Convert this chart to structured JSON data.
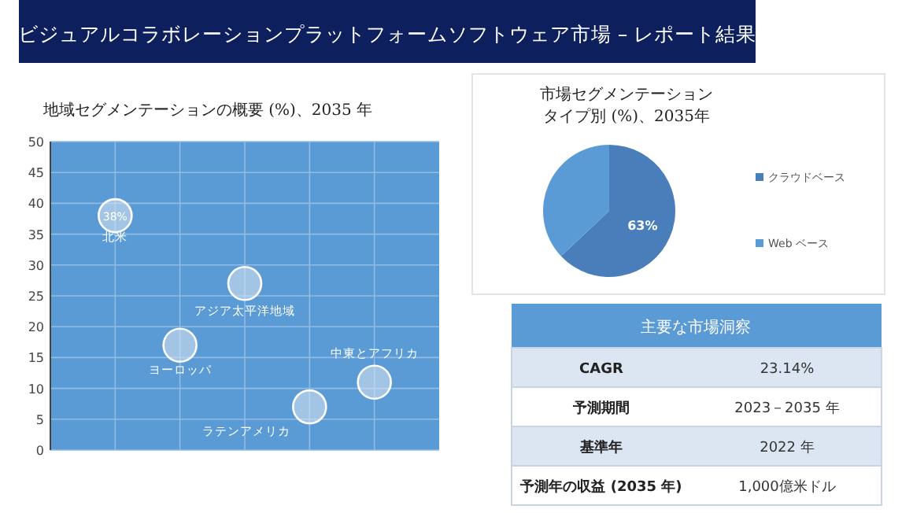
{
  "chart_data": [
    {
      "type": "other",
      "title": "ビジュアルコラボレーションプラットフォームソフトウェア市場 – レポート結果"
    },
    {
      "type": "bubble",
      "title": "地域セグメンテーションの概要 (%)、2035 年",
      "categories": [
        null,
        null,
        null,
        null,
        null
      ],
      "series": [
        {
          "color": "#dce6f2",
          "values": [
            38,
            17,
            27,
            7,
            11
          ],
          "sizes": [
            1,
            1,
            1,
            1,
            1
          ],
          "value_labels": [
            "38%",
            null,
            null,
            null,
            null
          ]
        }
      ],
      "ylim": [
        0,
        50
      ],
      "yticks": [
        0,
        5,
        10,
        15,
        20,
        25,
        30,
        35,
        40,
        45,
        50
      ],
      "grid": true,
      "annotations": [
        "北米",
        "ヨーロッパ",
        "アジア太平洋地域",
        "ラテンアメリカ",
        "中東とアフリカ"
      ]
    },
    {
      "type": "pie",
      "title": "市場セグメンテーションタイプ別 (%)、2035年",
      "categories": [
        "クラウドベース",
        "Web ベース"
      ],
      "values": [
        63,
        37
      ],
      "colors": [
        "#4a7ebb",
        "#5b9bd5"
      ],
      "value_labels": [
        "63%",
        null
      ],
      "legend": "right"
    },
    {
      "type": "other",
      "title": "主要な市場洞察",
      "annotations": [
        "CAGR",
        "23.14%",
        "予測期間",
        "2023－2035 年",
        "基準年",
        "2022 年",
        "予測年の収益 (2035 年)",
        "1,000億米ドル"
      ]
    }
  ]
}
